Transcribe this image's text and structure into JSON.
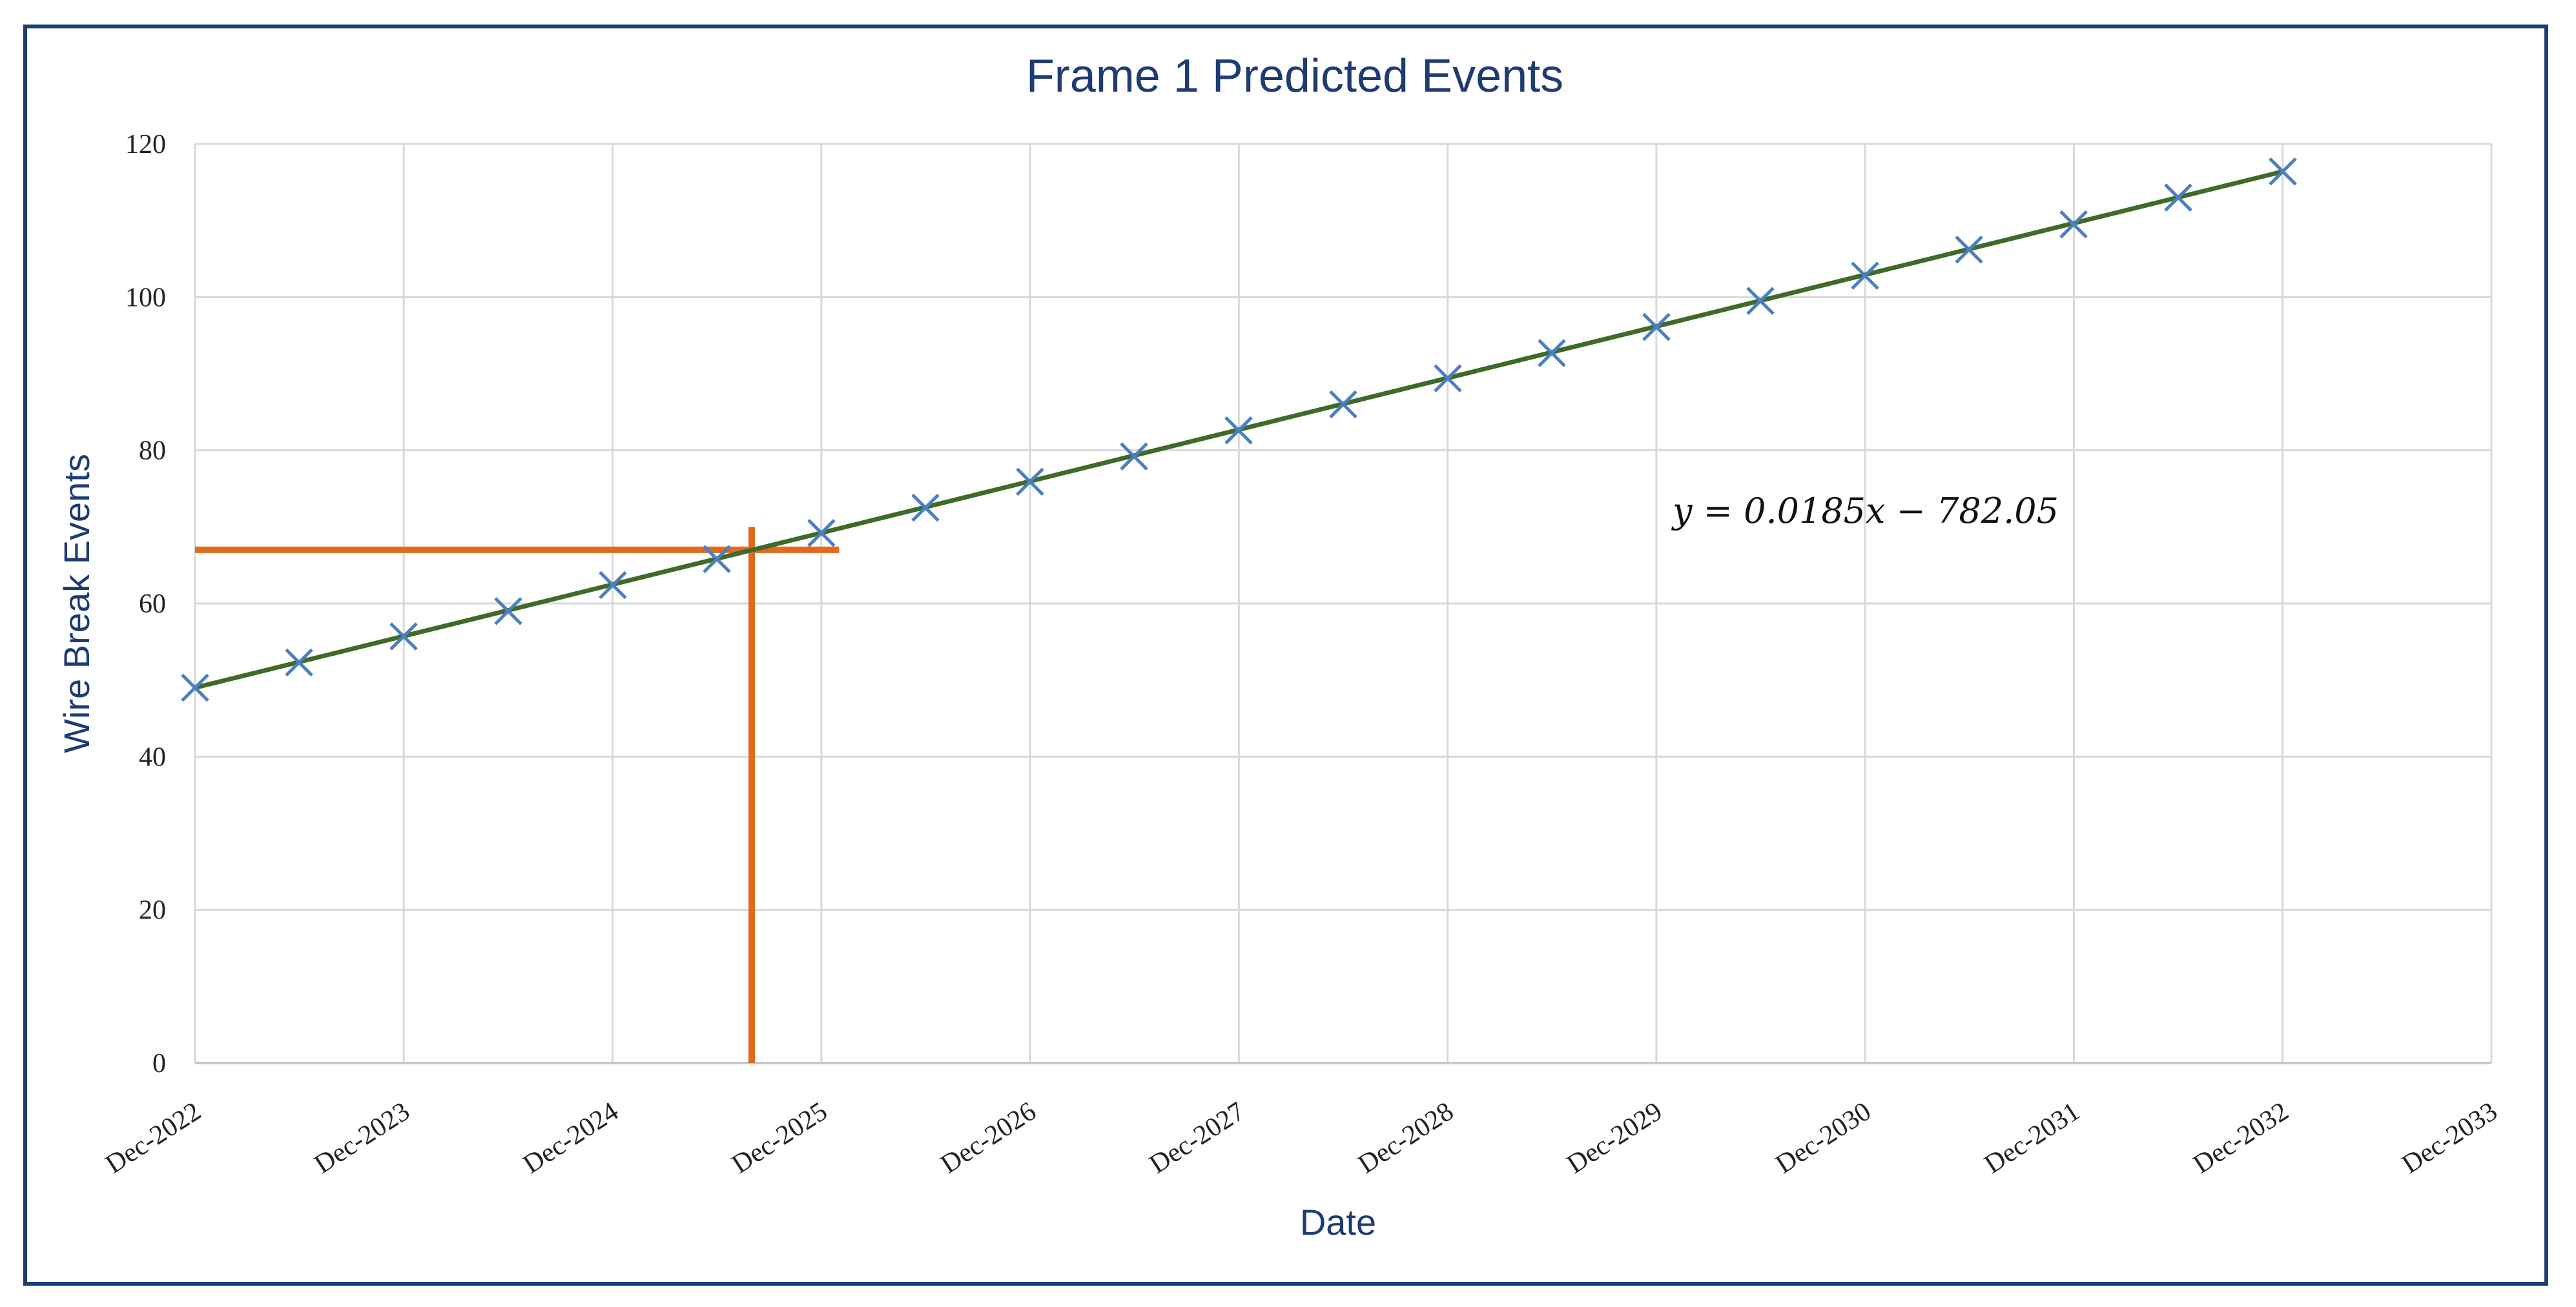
{
  "chart_data": {
    "type": "scatter",
    "title": "Frame 1 Predicted Events",
    "xlabel": "Date",
    "ylabel": "Wire Break Events",
    "x_tick_labels": [
      "Dec-2022",
      "Dec-2023",
      "Dec-2024",
      "Dec-2025",
      "Dec-2026",
      "Dec-2027",
      "Dec-2028",
      "Dec-2029",
      "Dec-2030",
      "Dec-2031",
      "Dec-2032",
      "Dec-2033"
    ],
    "y_tick_labels": [
      "0",
      "20",
      "40",
      "60",
      "80",
      "100",
      "120"
    ],
    "ylim": [
      0,
      120
    ],
    "xlim": [
      "2022-12-01",
      "2033-12-01"
    ],
    "grid": true,
    "series": [
      {
        "marker": "x",
        "color": "#4a7fc1",
        "points": [
          {
            "x": "2022-12-01",
            "y": 49
          },
          {
            "x": "2023-06-01",
            "y": 52.3
          },
          {
            "x": "2023-12-01",
            "y": 55.7
          },
          {
            "x": "2024-06-01",
            "y": 59
          },
          {
            "x": "2024-12-01",
            "y": 62.4
          },
          {
            "x": "2025-06-01",
            "y": 65.8
          },
          {
            "x": "2025-12-01",
            "y": 69.2
          },
          {
            "x": "2026-06-01",
            "y": 72.5
          },
          {
            "x": "2026-12-01",
            "y": 75.9
          },
          {
            "x": "2027-06-01",
            "y": 79.2
          },
          {
            "x": "2027-12-01",
            "y": 82.6
          },
          {
            "x": "2028-06-01",
            "y": 86
          },
          {
            "x": "2028-12-01",
            "y": 89.4
          },
          {
            "x": "2029-06-01",
            "y": 92.7
          },
          {
            "x": "2029-12-01",
            "y": 96.1
          },
          {
            "x": "2030-06-01",
            "y": 99.5
          },
          {
            "x": "2030-12-01",
            "y": 102.8
          },
          {
            "x": "2031-06-01",
            "y": 106.2
          },
          {
            "x": "2031-12-01",
            "y": 109.5
          },
          {
            "x": "2032-06-01",
            "y": 113
          },
          {
            "x": "2032-12-01",
            "y": 116.4
          }
        ]
      }
    ],
    "trendline": {
      "color": "#3f6a2a",
      "from": {
        "x": "2022-12-01",
        "y": 49
      },
      "to": {
        "x": "2032-12-01",
        "y": 116.4
      },
      "equation": "y = 0.0185x − 782.05"
    },
    "reference_lines": {
      "color": "#e06b1e",
      "horizontal": {
        "y": 67,
        "x_from": "2022-12-01",
        "x_to": "2026-01-01"
      },
      "vertical": {
        "x": "2025-08-01",
        "y_from": 0,
        "y_to": 70
      }
    }
  }
}
